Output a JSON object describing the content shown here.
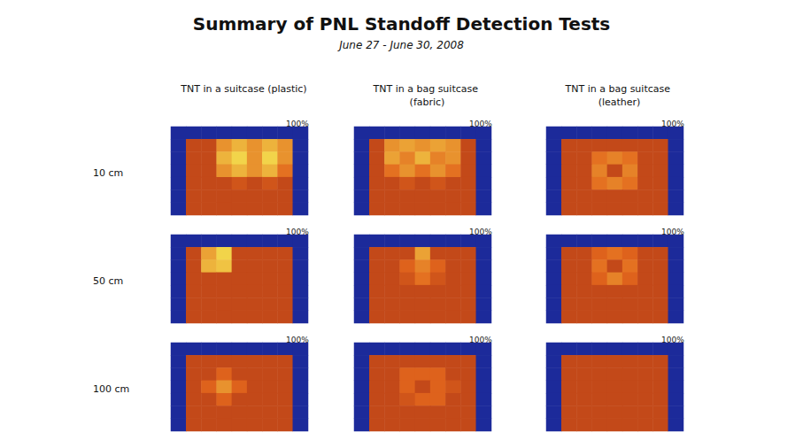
{
  "chart_data": {
    "type": "heatmap",
    "title": "Summary of PNL Standoff Detection Tests",
    "subtitle": "June 27 - June 30, 2008",
    "columns": [
      "TNT in a suitcase (plastic)",
      "TNT in a bag suitcase (fabric)",
      "TNT in a bag suitcase (leather)"
    ],
    "rows": [
      "10 cm",
      "50 cm",
      "100 cm"
    ],
    "color_range": [
      0,
      1
    ],
    "colors": [
      "#1c2a9a",
      "#8a1212",
      "#e2661c",
      "#f2d44a"
    ],
    "panels": [
      [
        {
          "tag": "100%",
          "cells": [
            [
              0,
              0,
              0,
              0,
              0,
              0,
              0,
              0,
              0
            ],
            [
              0,
              0.55,
              0.55,
              0.8,
              0.9,
              0.8,
              0.9,
              0.8,
              0
            ],
            [
              0,
              0.55,
              0.55,
              0.9,
              1,
              0.8,
              1,
              0.8,
              0
            ],
            [
              0,
              0.55,
              0.55,
              0.8,
              0.9,
              0.8,
              0.9,
              0.7,
              0
            ],
            [
              0,
              0.55,
              0.55,
              0.55,
              0.6,
              0.55,
              0.6,
              0.55,
              0
            ],
            [
              0,
              0.55,
              0.55,
              0.55,
              0.55,
              0.55,
              0.55,
              0.55,
              0
            ],
            [
              0,
              0.55,
              0.55,
              0.55,
              0.55,
              0.55,
              0.55,
              0.55,
              0
            ]
          ]
        },
        {
          "tag": "100%",
          "cells": [
            [
              0,
              0,
              0,
              0,
              0,
              0,
              0,
              0,
              0
            ],
            [
              0,
              0.55,
              0.8,
              0.85,
              0.8,
              0.85,
              0.8,
              0.55,
              0
            ],
            [
              0,
              0.55,
              0.85,
              0.75,
              0.9,
              0.75,
              0.8,
              0.55,
              0
            ],
            [
              0,
              0.55,
              0.7,
              0.8,
              0.7,
              0.8,
              0.7,
              0.55,
              0
            ],
            [
              0,
              0.55,
              0.55,
              0.6,
              0.55,
              0.6,
              0.55,
              0.55,
              0
            ],
            [
              0,
              0.55,
              0.55,
              0.55,
              0.55,
              0.55,
              0.55,
              0.55,
              0
            ],
            [
              0,
              0.55,
              0.55,
              0.55,
              0.55,
              0.55,
              0.55,
              0.55,
              0
            ]
          ]
        },
        {
          "tag": "100%",
          "cells": [
            [
              0,
              0,
              0,
              0,
              0,
              0,
              0,
              0,
              0
            ],
            [
              0,
              0.55,
              0.55,
              0.55,
              0.55,
              0.55,
              0.55,
              0.55,
              0
            ],
            [
              0,
              0.55,
              0.55,
              0.7,
              0.75,
              0.7,
              0.55,
              0.55,
              0
            ],
            [
              0,
              0.55,
              0.55,
              0.75,
              0.55,
              0.75,
              0.55,
              0.55,
              0
            ],
            [
              0,
              0.55,
              0.55,
              0.7,
              0.75,
              0.7,
              0.55,
              0.55,
              0
            ],
            [
              0,
              0.55,
              0.55,
              0.55,
              0.55,
              0.55,
              0.55,
              0.55,
              0
            ],
            [
              0,
              0.55,
              0.55,
              0.55,
              0.55,
              0.55,
              0.55,
              0.55,
              0
            ]
          ]
        }
      ],
      [
        {
          "tag": "100%",
          "cells": [
            [
              0,
              0,
              0,
              0,
              0,
              0,
              0,
              0,
              0
            ],
            [
              0,
              0.55,
              0.85,
              1,
              0.55,
              0.55,
              0.55,
              0.55,
              0
            ],
            [
              0,
              0.55,
              0.9,
              0.95,
              0.55,
              0.55,
              0.55,
              0.55,
              0
            ],
            [
              0,
              0.55,
              0.55,
              0.55,
              0.55,
              0.55,
              0.55,
              0.55,
              0
            ],
            [
              0,
              0.55,
              0.55,
              0.55,
              0.55,
              0.55,
              0.55,
              0.55,
              0
            ],
            [
              0,
              0.55,
              0.55,
              0.55,
              0.55,
              0.55,
              0.55,
              0.55,
              0
            ],
            [
              0,
              0.55,
              0.55,
              0.55,
              0.55,
              0.55,
              0.55,
              0.55,
              0
            ]
          ]
        },
        {
          "tag": "100%",
          "cells": [
            [
              0,
              0,
              0,
              0,
              0,
              0,
              0,
              0,
              0
            ],
            [
              0,
              0.55,
              0.55,
              0.55,
              0.85,
              0.55,
              0.55,
              0.55,
              0
            ],
            [
              0,
              0.55,
              0.55,
              0.65,
              0.75,
              0.65,
              0.55,
              0.55,
              0
            ],
            [
              0,
              0.55,
              0.55,
              0.6,
              0.7,
              0.6,
              0.55,
              0.55,
              0
            ],
            [
              0,
              0.55,
              0.55,
              0.55,
              0.55,
              0.55,
              0.55,
              0.55,
              0
            ],
            [
              0,
              0.55,
              0.55,
              0.55,
              0.55,
              0.55,
              0.55,
              0.55,
              0
            ],
            [
              0,
              0.55,
              0.55,
              0.55,
              0.55,
              0.55,
              0.55,
              0.55,
              0
            ]
          ]
        },
        {
          "tag": "100%",
          "cells": [
            [
              0,
              0,
              0,
              0,
              0,
              0,
              0,
              0,
              0
            ],
            [
              0,
              0.55,
              0.55,
              0.65,
              0.7,
              0.65,
              0.55,
              0.55,
              0
            ],
            [
              0,
              0.55,
              0.55,
              0.7,
              0.55,
              0.7,
              0.55,
              0.55,
              0
            ],
            [
              0,
              0.55,
              0.55,
              0.65,
              0.75,
              0.65,
              0.55,
              0.55,
              0
            ],
            [
              0,
              0.55,
              0.55,
              0.55,
              0.55,
              0.55,
              0.55,
              0.55,
              0
            ],
            [
              0,
              0.55,
              0.55,
              0.55,
              0.55,
              0.55,
              0.55,
              0.55,
              0
            ],
            [
              0,
              0.55,
              0.55,
              0.55,
              0.55,
              0.55,
              0.55,
              0.55,
              0
            ]
          ]
        }
      ],
      [
        {
          "tag": "100%",
          "cells": [
            [
              0,
              0,
              0,
              0,
              0,
              0,
              0,
              0,
              0
            ],
            [
              0,
              0.55,
              0.55,
              0.55,
              0.55,
              0.55,
              0.55,
              0.55,
              0
            ],
            [
              0,
              0.55,
              0.55,
              0.65,
              0.55,
              0.55,
              0.55,
              0.55,
              0
            ],
            [
              0,
              0.55,
              0.65,
              0.8,
              0.65,
              0.55,
              0.55,
              0.55,
              0
            ],
            [
              0,
              0.55,
              0.55,
              0.65,
              0.55,
              0.55,
              0.55,
              0.55,
              0
            ],
            [
              0,
              0.55,
              0.55,
              0.55,
              0.55,
              0.55,
              0.55,
              0.55,
              0
            ],
            [
              0,
              0.55,
              0.55,
              0.55,
              0.55,
              0.55,
              0.55,
              0.55,
              0
            ]
          ]
        },
        {
          "tag": "100%",
          "cells": [
            [
              0,
              0,
              0,
              0,
              0,
              0,
              0,
              0,
              0
            ],
            [
              0,
              0.55,
              0.55,
              0.55,
              0.55,
              0.55,
              0.55,
              0.55,
              0
            ],
            [
              0,
              0.55,
              0.55,
              0.65,
              0.65,
              0.65,
              0.55,
              0.55,
              0
            ],
            [
              0,
              0.55,
              0.55,
              0.65,
              0.55,
              0.65,
              0.6,
              0.55,
              0
            ],
            [
              0,
              0.55,
              0.55,
              0.6,
              0.65,
              0.65,
              0.55,
              0.55,
              0
            ],
            [
              0,
              0.55,
              0.55,
              0.55,
              0.55,
              0.55,
              0.55,
              0.55,
              0
            ],
            [
              0,
              0.55,
              0.55,
              0.55,
              0.55,
              0.55,
              0.55,
              0.55,
              0
            ]
          ]
        },
        {
          "tag": "100%",
          "cells": [
            [
              0,
              0,
              0,
              0,
              0,
              0,
              0,
              0,
              0
            ],
            [
              0,
              0.55,
              0.55,
              0.55,
              0.55,
              0.55,
              0.55,
              0.55,
              0
            ],
            [
              0,
              0.55,
              0.55,
              0.55,
              0.55,
              0.55,
              0.55,
              0.55,
              0
            ],
            [
              0,
              0.55,
              0.55,
              0.55,
              0.55,
              0.55,
              0.55,
              0.55,
              0
            ],
            [
              0,
              0.55,
              0.55,
              0.55,
              0.55,
              0.55,
              0.55,
              0.55,
              0
            ],
            [
              0,
              0.55,
              0.55,
              0.55,
              0.55,
              0.55,
              0.55,
              0.55,
              0
            ],
            [
              0,
              0.55,
              0.55,
              0.55,
              0.55,
              0.55,
              0.55,
              0.55,
              0
            ]
          ]
        }
      ]
    ]
  }
}
